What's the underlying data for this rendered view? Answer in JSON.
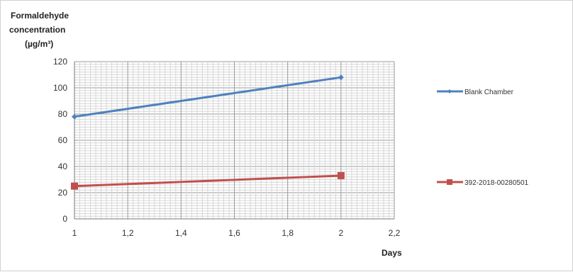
{
  "chart_data": {
    "type": "line",
    "title": "",
    "ylabel_lines": [
      "Formaldehyde",
      "concentration",
      "(µg/m³)"
    ],
    "xlabel": "Days",
    "xlim": [
      1,
      2.2
    ],
    "ylim": [
      0,
      120
    ],
    "x_ticks": [
      1,
      1.2,
      1.4,
      1.6,
      1.8,
      2,
      2.2
    ],
    "x_tick_labels": [
      "1",
      "1,2",
      "1,4",
      "1,6",
      "1,8",
      "2",
      "2,2"
    ],
    "y_ticks": [
      0,
      20,
      40,
      60,
      80,
      100,
      120
    ],
    "y_tick_labels": [
      "0",
      "20",
      "40",
      "60",
      "80",
      "100",
      "120"
    ],
    "grid": true,
    "legend_position": "right",
    "series": [
      {
        "name": "Blank Chamber",
        "color": "#4f81bd",
        "marker": "diamond",
        "x": [
          1,
          2
        ],
        "y": [
          78,
          108
        ]
      },
      {
        "name": "392-2018-00280501",
        "color": "#c0504d",
        "marker": "square",
        "x": [
          1,
          2
        ],
        "y": [
          25,
          33
        ]
      }
    ]
  }
}
